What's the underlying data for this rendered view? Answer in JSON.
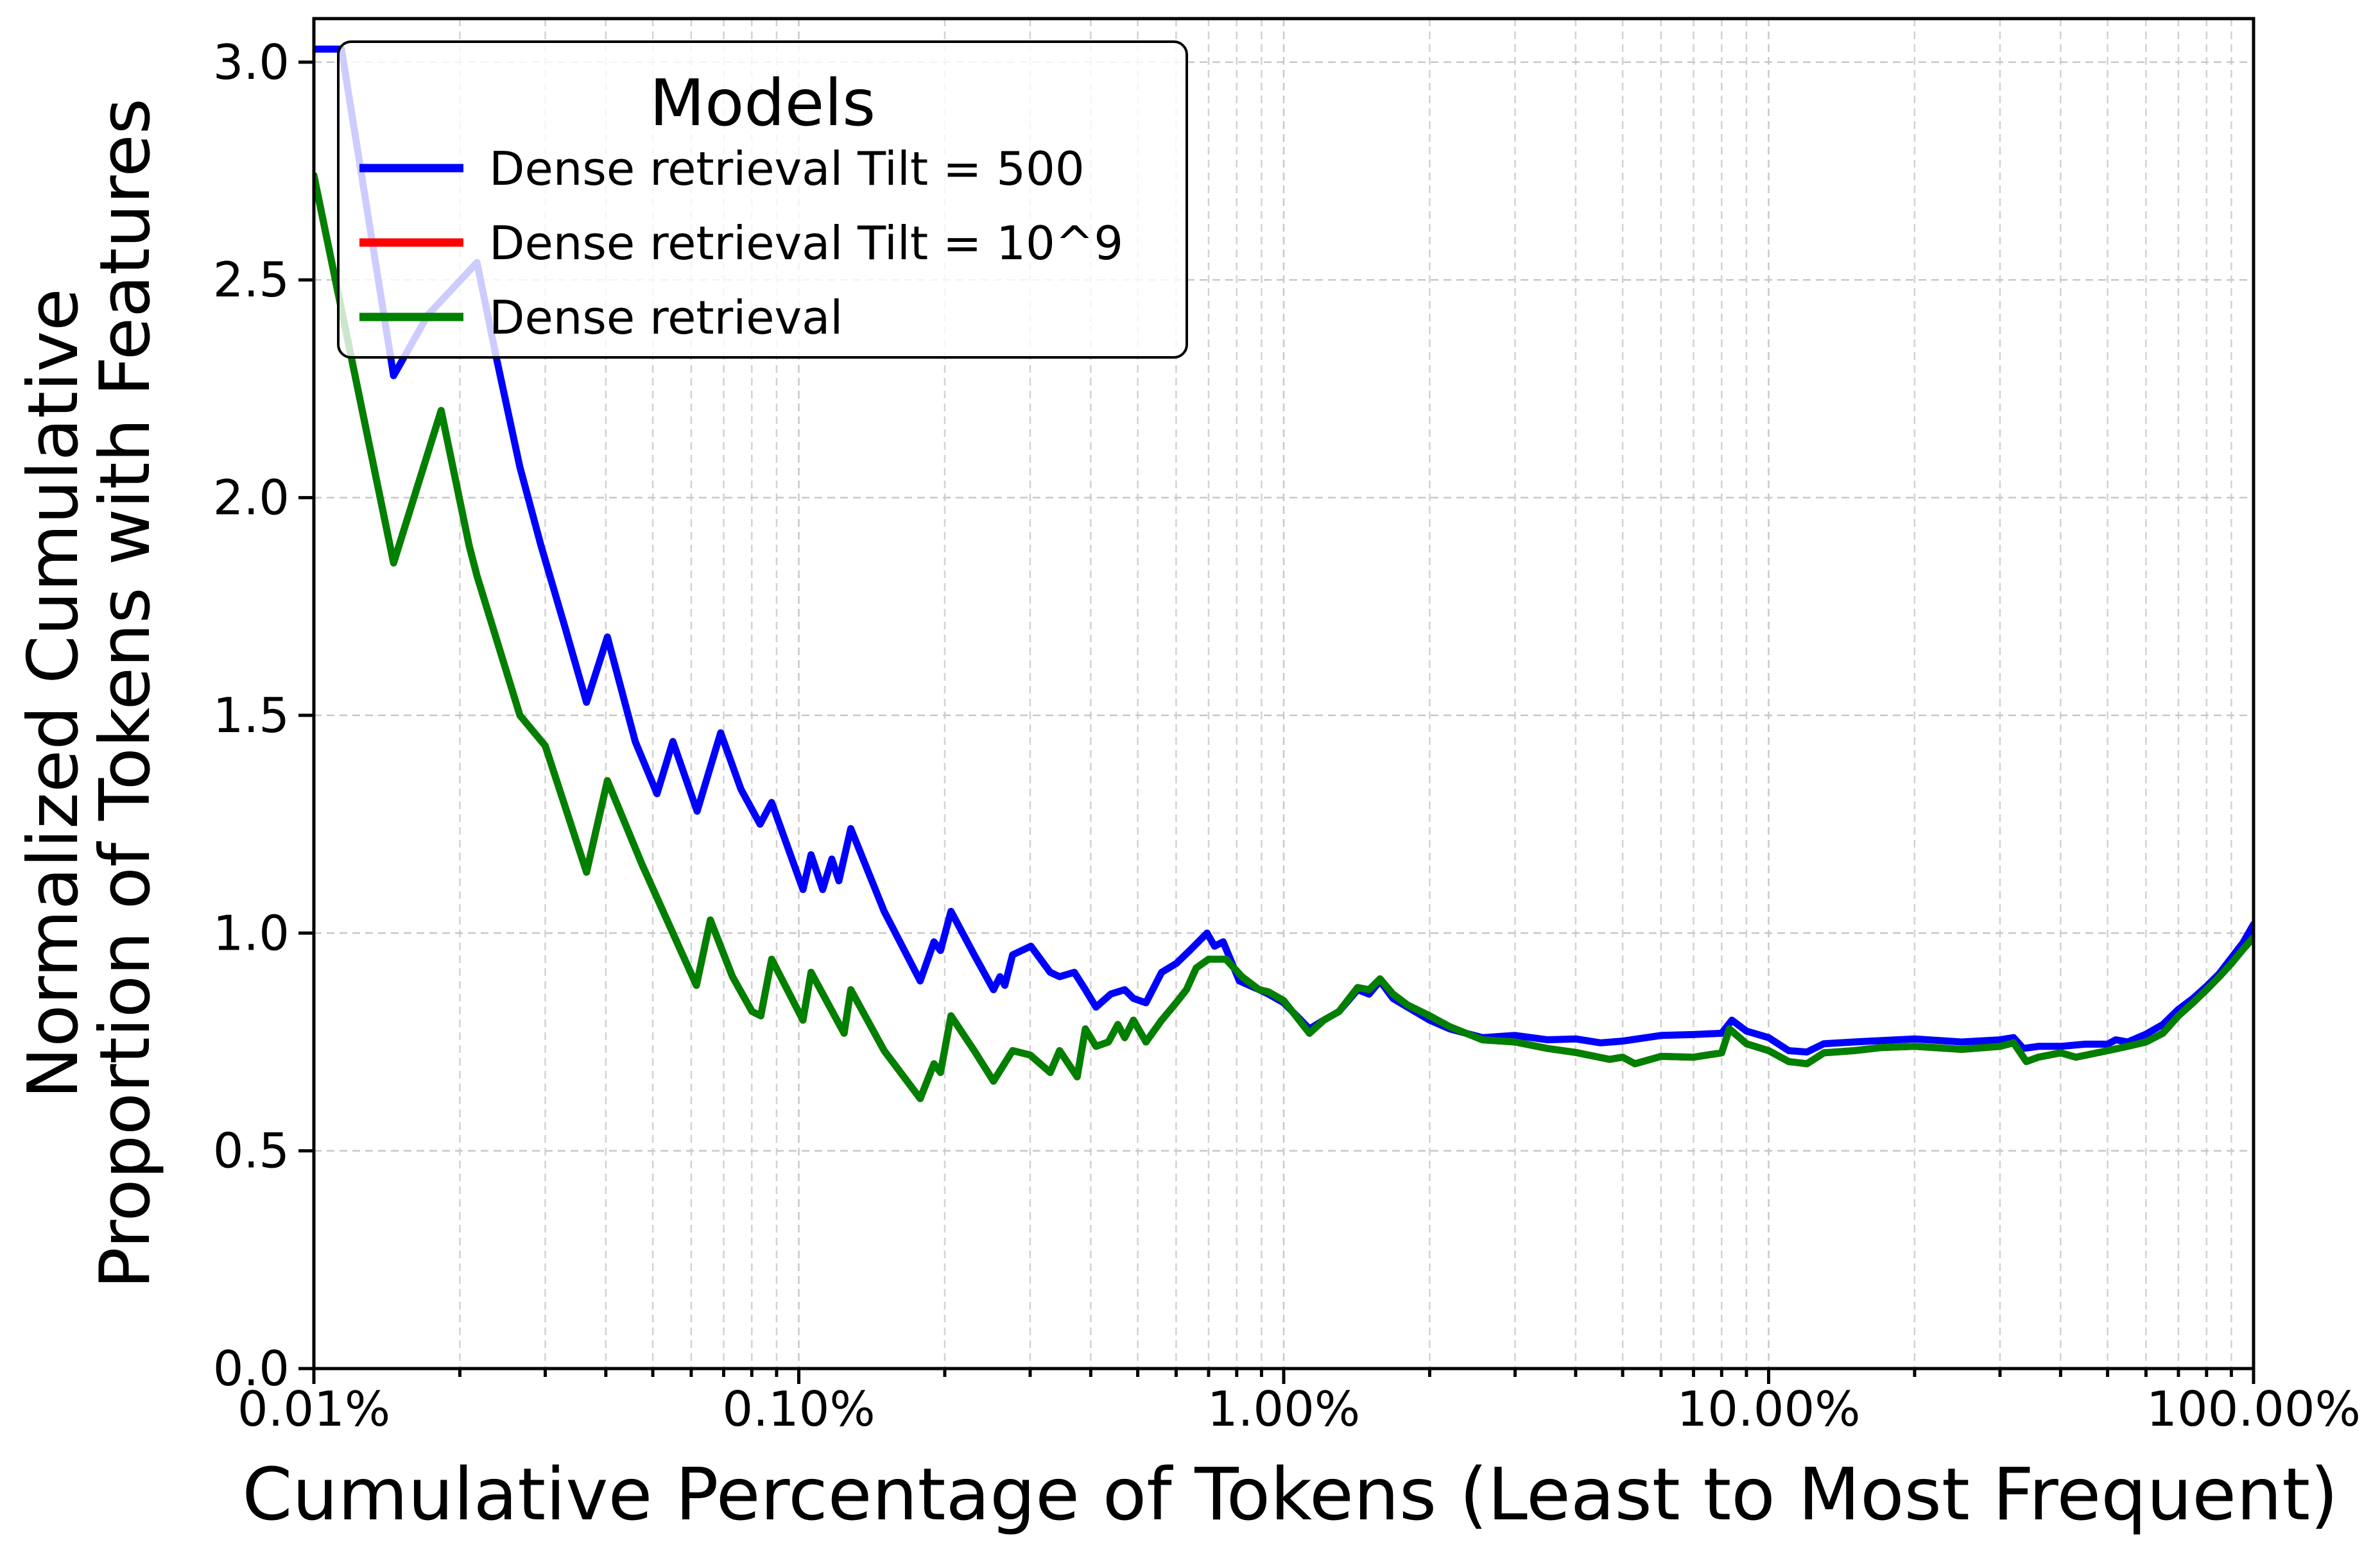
{
  "chart_data": {
    "type": "line",
    "title": "",
    "xlabel": "Cumulative Percentage of Tokens (Least to Most Frequent)",
    "ylabel": "Normalized Cumulative Proportion of Tokens with Features",
    "ylabel_lines": [
      "Normalized Cumulative",
      "Proportion of Tokens with Features"
    ],
    "x_scale": "log",
    "xlim": [
      0.01,
      100
    ],
    "ylim": [
      0,
      3.1
    ],
    "grid": true,
    "background_color": "#ffffff",
    "x_ticks": [
      {
        "value": 0.01,
        "label": "0.01%"
      },
      {
        "value": 0.1,
        "label": "0.10%"
      },
      {
        "value": 1,
        "label": "1.00%"
      },
      {
        "value": 10,
        "label": "10.00%"
      },
      {
        "value": 100,
        "label": "100.00%"
      }
    ],
    "y_ticks": [
      {
        "value": 0.0,
        "label": "0.0"
      },
      {
        "value": 0.5,
        "label": "0.5"
      },
      {
        "value": 1.0,
        "label": "1.0"
      },
      {
        "value": 1.5,
        "label": "1.5"
      },
      {
        "value": 2.0,
        "label": "2.0"
      },
      {
        "value": 2.5,
        "label": "2.5"
      },
      {
        "value": 3.0,
        "label": "3.0"
      }
    ],
    "legend": {
      "title": "Models",
      "position": "upper left",
      "entries": [
        {
          "name": "Dense retrieval Tilt = 500",
          "color": "#0000ff"
        },
        {
          "name": "Dense retrieval Tilt = 10^9",
          "color": "#ff0000"
        },
        {
          "name": "Dense retrieval",
          "color": "#008000"
        }
      ]
    },
    "series": [
      {
        "name": "Dense retrieval Tilt = 500",
        "color": "#0000ff",
        "points": [
          [
            0.01,
            3.03
          ],
          [
            0.0114,
            3.03
          ],
          [
            0.0146,
            2.28
          ],
          [
            0.0172,
            2.42
          ],
          [
            0.0217,
            2.54
          ],
          [
            0.0238,
            2.32
          ],
          [
            0.0266,
            2.07
          ],
          [
            0.0294,
            1.89
          ],
          [
            0.033,
            1.7
          ],
          [
            0.0365,
            1.53
          ],
          [
            0.0403,
            1.68
          ],
          [
            0.046,
            1.44
          ],
          [
            0.051,
            1.32
          ],
          [
            0.055,
            1.44
          ],
          [
            0.0617,
            1.28
          ],
          [
            0.069,
            1.46
          ],
          [
            0.076,
            1.33
          ],
          [
            0.0832,
            1.25
          ],
          [
            0.0879,
            1.3
          ],
          [
            0.102,
            1.1
          ],
          [
            0.106,
            1.18
          ],
          [
            0.112,
            1.1
          ],
          [
            0.117,
            1.17
          ],
          [
            0.121,
            1.12
          ],
          [
            0.128,
            1.24
          ],
          [
            0.15,
            1.05
          ],
          [
            0.178,
            0.89
          ],
          [
            0.19,
            0.98
          ],
          [
            0.196,
            0.96
          ],
          [
            0.206,
            1.05
          ],
          [
            0.23,
            0.95
          ],
          [
            0.252,
            0.87
          ],
          [
            0.26,
            0.9
          ],
          [
            0.266,
            0.88
          ],
          [
            0.276,
            0.95
          ],
          [
            0.301,
            0.97
          ],
          [
            0.33,
            0.91
          ],
          [
            0.345,
            0.9
          ],
          [
            0.37,
            0.91
          ],
          [
            0.39,
            0.87
          ],
          [
            0.41,
            0.83
          ],
          [
            0.44,
            0.86
          ],
          [
            0.47,
            0.87
          ],
          [
            0.49,
            0.85
          ],
          [
            0.52,
            0.84
          ],
          [
            0.56,
            0.91
          ],
          [
            0.6,
            0.93
          ],
          [
            0.64,
            0.96
          ],
          [
            0.695,
            1.0
          ],
          [
            0.72,
            0.97
          ],
          [
            0.75,
            0.98
          ],
          [
            0.81,
            0.89
          ],
          [
            0.89,
            0.87
          ],
          [
            0.93,
            0.86
          ],
          [
            1.0,
            0.84
          ],
          [
            1.13,
            0.78
          ],
          [
            1.21,
            0.8
          ],
          [
            1.3,
            0.82
          ],
          [
            1.42,
            0.87
          ],
          [
            1.5,
            0.86
          ],
          [
            1.58,
            0.89
          ],
          [
            1.68,
            0.85
          ],
          [
            1.8,
            0.83
          ],
          [
            2.0,
            0.8
          ],
          [
            2.2,
            0.78
          ],
          [
            2.57,
            0.76
          ],
          [
            3.0,
            0.765
          ],
          [
            3.5,
            0.755
          ],
          [
            4.0,
            0.757
          ],
          [
            4.5,
            0.748
          ],
          [
            5.0,
            0.752
          ],
          [
            6.0,
            0.765
          ],
          [
            7.0,
            0.767
          ],
          [
            8.0,
            0.77
          ],
          [
            8.4,
            0.8
          ],
          [
            9.0,
            0.775
          ],
          [
            10.0,
            0.76
          ],
          [
            11.0,
            0.73
          ],
          [
            12.0,
            0.727
          ],
          [
            13.0,
            0.746
          ],
          [
            15.0,
            0.75
          ],
          [
            17.0,
            0.753
          ],
          [
            20.0,
            0.757
          ],
          [
            25.0,
            0.75
          ],
          [
            30.0,
            0.755
          ],
          [
            32.0,
            0.76
          ],
          [
            33.5,
            0.735
          ],
          [
            36.0,
            0.74
          ],
          [
            40.0,
            0.74
          ],
          [
            45.0,
            0.745
          ],
          [
            50.0,
            0.745
          ],
          [
            52.0,
            0.755
          ],
          [
            55.0,
            0.75
          ],
          [
            60.0,
            0.768
          ],
          [
            65.0,
            0.79
          ],
          [
            70.0,
            0.825
          ],
          [
            75.0,
            0.85
          ],
          [
            80.0,
            0.878
          ],
          [
            85.0,
            0.907
          ],
          [
            90.0,
            0.943
          ],
          [
            95.0,
            0.977
          ],
          [
            100.0,
            1.02
          ]
        ]
      },
      {
        "name": "Dense retrieval Tilt = 10^9",
        "color": "#ff0000",
        "points_ref": "Dense retrieval",
        "note": "curve coincides exactly with Dense retrieval and is hidden beneath it"
      },
      {
        "name": "Dense retrieval",
        "color": "#008000",
        "points": [
          [
            0.01,
            2.74
          ],
          [
            0.0146,
            1.85
          ],
          [
            0.0183,
            2.2
          ],
          [
            0.0209,
            1.89
          ],
          [
            0.0217,
            1.82
          ],
          [
            0.0266,
            1.5
          ],
          [
            0.03,
            1.43
          ],
          [
            0.0365,
            1.14
          ],
          [
            0.0403,
            1.35
          ],
          [
            0.0474,
            1.16
          ],
          [
            0.055,
            1.0
          ],
          [
            0.0615,
            0.88
          ],
          [
            0.0657,
            1.03
          ],
          [
            0.073,
            0.9
          ],
          [
            0.0801,
            0.82
          ],
          [
            0.0835,
            0.81
          ],
          [
            0.0879,
            0.94
          ],
          [
            0.102,
            0.8
          ],
          [
            0.106,
            0.91
          ],
          [
            0.124,
            0.77
          ],
          [
            0.128,
            0.87
          ],
          [
            0.15,
            0.73
          ],
          [
            0.178,
            0.62
          ],
          [
            0.19,
            0.7
          ],
          [
            0.196,
            0.68
          ],
          [
            0.206,
            0.81
          ],
          [
            0.23,
            0.73
          ],
          [
            0.252,
            0.66
          ],
          [
            0.276,
            0.73
          ],
          [
            0.3,
            0.72
          ],
          [
            0.33,
            0.68
          ],
          [
            0.345,
            0.73
          ],
          [
            0.375,
            0.67
          ],
          [
            0.39,
            0.78
          ],
          [
            0.41,
            0.74
          ],
          [
            0.435,
            0.75
          ],
          [
            0.455,
            0.79
          ],
          [
            0.47,
            0.76
          ],
          [
            0.49,
            0.8
          ],
          [
            0.52,
            0.75
          ],
          [
            0.56,
            0.8
          ],
          [
            0.6,
            0.84
          ],
          [
            0.63,
            0.87
          ],
          [
            0.66,
            0.92
          ],
          [
            0.7,
            0.94
          ],
          [
            0.76,
            0.94
          ],
          [
            0.82,
            0.9
          ],
          [
            0.89,
            0.87
          ],
          [
            0.93,
            0.865
          ],
          [
            1.0,
            0.845
          ],
          [
            1.13,
            0.77
          ],
          [
            1.21,
            0.8
          ],
          [
            1.3,
            0.82
          ],
          [
            1.42,
            0.875
          ],
          [
            1.5,
            0.87
          ],
          [
            1.58,
            0.895
          ],
          [
            1.68,
            0.86
          ],
          [
            1.8,
            0.835
          ],
          [
            2.0,
            0.81
          ],
          [
            2.2,
            0.785
          ],
          [
            2.57,
            0.755
          ],
          [
            3.0,
            0.75
          ],
          [
            3.5,
            0.735
          ],
          [
            4.0,
            0.726
          ],
          [
            4.7,
            0.71
          ],
          [
            5.0,
            0.715
          ],
          [
            5.3,
            0.7
          ],
          [
            6.0,
            0.717
          ],
          [
            7.0,
            0.715
          ],
          [
            8.0,
            0.725
          ],
          [
            8.3,
            0.78
          ],
          [
            9.0,
            0.746
          ],
          [
            10.0,
            0.73
          ],
          [
            11.0,
            0.705
          ],
          [
            12.0,
            0.7
          ],
          [
            13.0,
            0.725
          ],
          [
            15.0,
            0.73
          ],
          [
            17.0,
            0.737
          ],
          [
            20.0,
            0.74
          ],
          [
            25.0,
            0.733
          ],
          [
            30.0,
            0.74
          ],
          [
            32.0,
            0.748
          ],
          [
            34.0,
            0.705
          ],
          [
            36.0,
            0.715
          ],
          [
            40.0,
            0.725
          ],
          [
            43.0,
            0.715
          ],
          [
            50.0,
            0.73
          ],
          [
            55.0,
            0.74
          ],
          [
            60.0,
            0.75
          ],
          [
            65.0,
            0.77
          ],
          [
            70.0,
            0.81
          ],
          [
            75.0,
            0.84
          ],
          [
            80.0,
            0.87
          ],
          [
            85.0,
            0.9
          ],
          [
            90.0,
            0.93
          ],
          [
            95.0,
            0.962
          ],
          [
            100.0,
            0.99
          ]
        ]
      }
    ]
  }
}
